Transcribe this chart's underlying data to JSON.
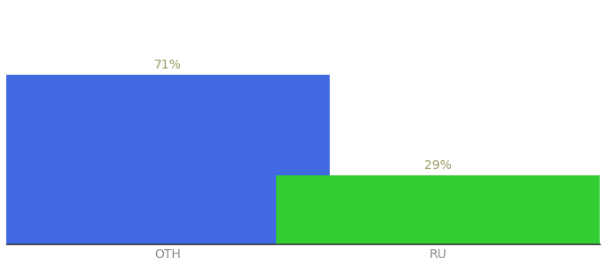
{
  "categories": [
    "OTH",
    "RU"
  ],
  "values": [
    71,
    29
  ],
  "bar_colors": [
    "#4169E1",
    "#33CC33"
  ],
  "label_texts": [
    "71%",
    "29%"
  ],
  "label_color": "#999966",
  "ylim": [
    0,
    100
  ],
  "background_color": "#ffffff",
  "bar_width": 0.6,
  "label_fontsize": 10,
  "tick_fontsize": 10,
  "tick_color": "#888888"
}
